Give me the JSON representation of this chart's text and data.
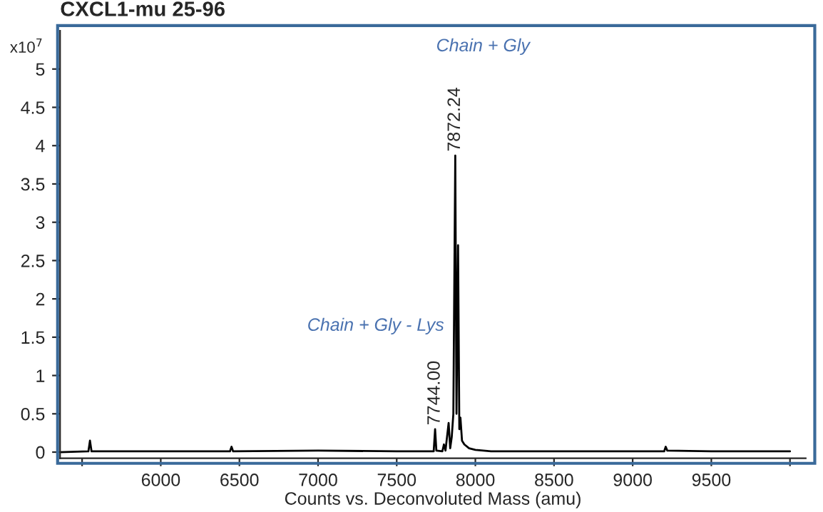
{
  "chart_data": {
    "type": "line",
    "title": "CXCL1-mu 25-96",
    "xlabel": "Counts vs. Deconvoluted Mass (amu)",
    "ylabel": "x10$^{7}$",
    "series": [
      {
        "color": "#000000",
        "x": [
          5360,
          5540,
          5550,
          5560,
          5700,
          6000,
          6440,
          6450,
          6460,
          7000,
          7500,
          7735,
          7744,
          7752,
          7790,
          7800,
          7810,
          7830,
          7840,
          7850,
          7860,
          7872.24,
          7880,
          7890,
          7898,
          7905,
          7915,
          7930,
          7960,
          8000,
          8100,
          8500,
          9000,
          9200,
          9210,
          9220,
          9500,
          10000
        ],
        "values": [
          0,
          0.01,
          0.15,
          0.01,
          0.01,
          0.01,
          0.01,
          0.07,
          0.01,
          0.02,
          0.01,
          0.01,
          0.3,
          0.02,
          0.01,
          0.1,
          0.02,
          0.38,
          0.05,
          0.2,
          0.5,
          3.87,
          0.5,
          2.7,
          0.3,
          0.45,
          0.15,
          0.1,
          0.05,
          0.03,
          0.01,
          0.01,
          0.01,
          0.01,
          0.07,
          0.02,
          0.01,
          0.01
        ]
      }
    ],
    "xlim": [
      5360,
      10100
    ],
    "ylim": [
      -0.08,
      5.5
    ],
    "xticks": [
      {
        "value": 5500,
        "label": null
      },
      6000,
      6500,
      7000,
      7500,
      8000,
      8500,
      9000,
      9500,
      {
        "value": 10000,
        "label": null
      }
    ],
    "yticks": [
      0,
      0.5,
      1,
      1.5,
      2,
      2.5,
      3,
      3.5,
      4,
      4.5,
      5
    ],
    "grid": false,
    "legend": false,
    "marker": "none",
    "line_style": "solid",
    "annotations": [
      {
        "text": "7872.24",
        "x": 7872.24,
        "y": 3.87
      },
      {
        "text": "7744.00",
        "x": 7744,
        "y": 0.3
      },
      "Chain + Gly",
      "Chain + Gly - Lys"
    ]
  }
}
